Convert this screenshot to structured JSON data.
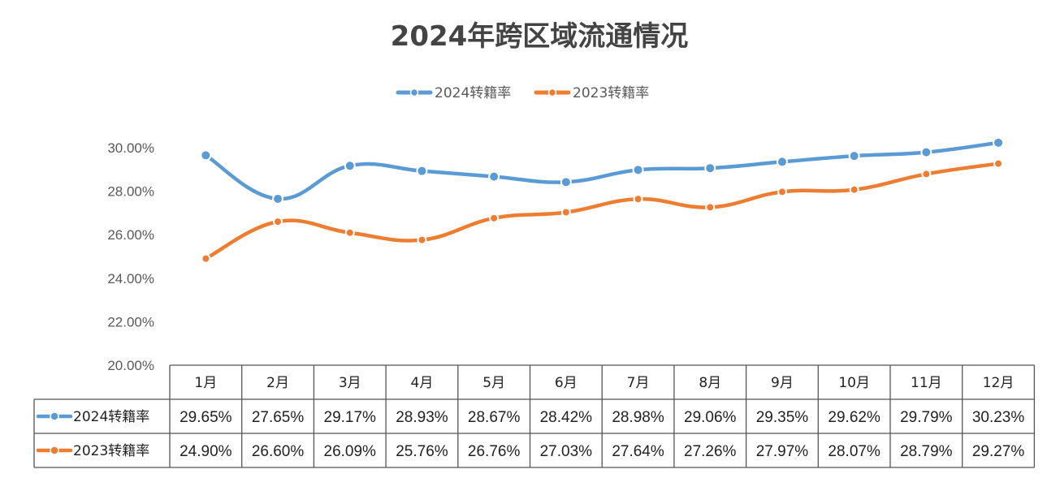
{
  "chart_data": {
    "type": "line",
    "title": "2024年跨区域流通情况",
    "categories": [
      "1月",
      "2月",
      "3月",
      "4月",
      "5月",
      "6月",
      "7月",
      "8月",
      "9月",
      "10月",
      "11月",
      "12月"
    ],
    "series": [
      {
        "name": "2024转籍率",
        "color": "#5B9BD5",
        "values": [
          29.65,
          27.65,
          29.17,
          28.93,
          28.67,
          28.42,
          28.98,
          29.06,
          29.35,
          29.62,
          29.79,
          30.23
        ],
        "labels": [
          "29.65%",
          "27.65%",
          "29.17%",
          "28.93%",
          "28.67%",
          "28.42%",
          "28.98%",
          "29.06%",
          "29.35%",
          "29.62%",
          "29.79%",
          "30.23%"
        ]
      },
      {
        "name": "2023转籍率",
        "color": "#ED7D31",
        "values": [
          24.9,
          26.6,
          26.09,
          25.76,
          26.76,
          27.03,
          27.64,
          27.26,
          27.97,
          28.07,
          28.79,
          29.27
        ],
        "labels": [
          "24.90%",
          "26.60%",
          "26.09%",
          "25.76%",
          "26.76%",
          "27.03%",
          "27.64%",
          "27.26%",
          "27.97%",
          "28.07%",
          "28.79%",
          "29.27%"
        ]
      }
    ],
    "y_ticks": [
      "20.00%",
      "22.00%",
      "24.00%",
      "26.00%",
      "28.00%",
      "30.00%"
    ],
    "ylim": [
      20,
      30
    ],
    "legend_position": "top-center",
    "data_table": true,
    "grid": false
  }
}
